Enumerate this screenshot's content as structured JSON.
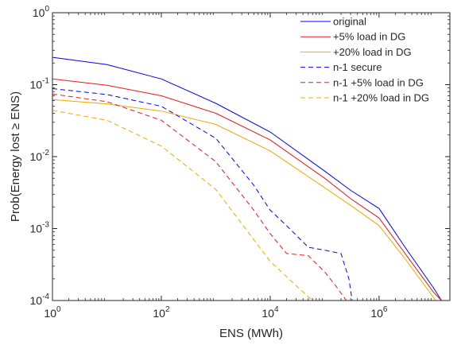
{
  "chart_data": {
    "type": "line",
    "xlabel": "ENS (MWh)",
    "ylabel": "Prob(Energy lost ≥ ENS)",
    "x_scale": "log",
    "y_scale": "log",
    "xlim": [
      1,
      20000000
    ],
    "ylim": [
      0.0001,
      1
    ],
    "x_ticks": [
      {
        "value": 1,
        "base": "10",
        "exp": "0"
      },
      {
        "value": 100,
        "base": "10",
        "exp": "2"
      },
      {
        "value": 10000,
        "base": "10",
        "exp": "4"
      },
      {
        "value": 1000000,
        "base": "10",
        "exp": "6"
      }
    ],
    "y_ticks": [
      {
        "value": 1,
        "base": "10",
        "exp": "0"
      },
      {
        "value": 0.1,
        "base": "10",
        "exp": "-1"
      },
      {
        "value": 0.01,
        "base": "10",
        "exp": "-2"
      },
      {
        "value": 0.001,
        "base": "10",
        "exp": "-3"
      },
      {
        "value": 0.0001,
        "base": "10",
        "exp": "-4"
      }
    ],
    "grid": false,
    "legend_position": "top-right",
    "series": [
      {
        "name": "original",
        "color": "#0000ff",
        "dash": "solid",
        "points": [
          [
            1,
            0.24
          ],
          [
            10,
            0.19
          ],
          [
            100,
            0.12
          ],
          [
            1000,
            0.055
          ],
          [
            10000,
            0.022
          ],
          [
            100000,
            0.0063
          ],
          [
            300000,
            0.0034
          ],
          [
            1000000,
            0.0019
          ],
          [
            3000000,
            0.00055
          ],
          [
            10000000,
            0.00015
          ],
          [
            14000000,
            0.0001
          ]
        ]
      },
      {
        "name": "+5% load in DG",
        "color": "#e8191c",
        "dash": "solid",
        "points": [
          [
            1,
            0.12
          ],
          [
            10,
            0.098
          ],
          [
            100,
            0.07
          ],
          [
            1000,
            0.04
          ],
          [
            10000,
            0.017
          ],
          [
            100000,
            0.005
          ],
          [
            300000,
            0.0026
          ],
          [
            1000000,
            0.0014
          ],
          [
            3000000,
            0.00045
          ],
          [
            10000000,
            0.00013
          ],
          [
            14000000,
            0.0001
          ]
        ]
      },
      {
        "name": "+20% load in DG",
        "color": "#f5a800",
        "dash": "solid",
        "points": [
          [
            1,
            0.062
          ],
          [
            10,
            0.054
          ],
          [
            100,
            0.043
          ],
          [
            1000,
            0.028
          ],
          [
            10000,
            0.012
          ],
          [
            100000,
            0.0037
          ],
          [
            300000,
            0.0021
          ],
          [
            1000000,
            0.0011
          ],
          [
            3000000,
            0.00038
          ],
          [
            10000000,
            0.00011
          ],
          [
            11000000,
            0.0001
          ]
        ]
      },
      {
        "name": "n-1 secure",
        "color": "#0000ff",
        "dash": "dashed",
        "points": [
          [
            1,
            0.088
          ],
          [
            10,
            0.073
          ],
          [
            100,
            0.05
          ],
          [
            1000,
            0.018
          ],
          [
            5000,
            0.004
          ],
          [
            10000,
            0.0018
          ],
          [
            20000,
            0.0011
          ],
          [
            50000,
            0.00055
          ],
          [
            100000,
            0.0005
          ],
          [
            200000,
            0.00045
          ],
          [
            280000,
            0.0002
          ],
          [
            320000,
            0.0001
          ]
        ]
      },
      {
        "name": "n-1 +5% load in DG",
        "color": "#e8191c",
        "dash": "dashed",
        "points": [
          [
            1,
            0.074
          ],
          [
            10,
            0.058
          ],
          [
            100,
            0.032
          ],
          [
            1000,
            0.0085
          ],
          [
            5000,
            0.0018
          ],
          [
            10000,
            0.00085
          ],
          [
            20000,
            0.00045
          ],
          [
            50000,
            0.00042
          ],
          [
            100000,
            0.00025
          ],
          [
            160000,
            0.00016
          ],
          [
            250000,
            0.0001
          ]
        ]
      },
      {
        "name": "n-1 +20% load in DG",
        "color": "#f5a800",
        "dash": "dashed",
        "points": [
          [
            1,
            0.044
          ],
          [
            10,
            0.032
          ],
          [
            100,
            0.014
          ],
          [
            1000,
            0.0035
          ],
          [
            5000,
            0.0007
          ],
          [
            10000,
            0.00035
          ],
          [
            30000,
            0.00016
          ],
          [
            60000,
            0.0001
          ]
        ]
      }
    ]
  }
}
